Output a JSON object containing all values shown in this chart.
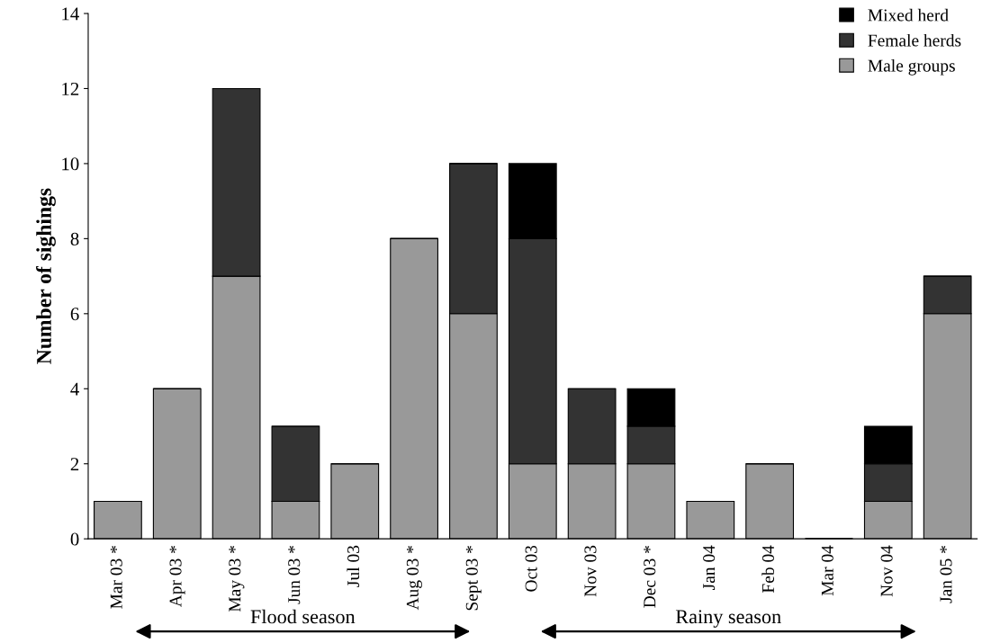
{
  "chart_data": {
    "type": "bar",
    "stacked": true,
    "ylabel": "Number of sighings",
    "categories": [
      "Mar 03 *",
      "Apr 03 *",
      "May 03 *",
      "Jun 03 *",
      "Jul 03",
      "Aug 03 *",
      "Sept 03 *",
      "Oct 03",
      "Nov 03",
      "Dec 03 *",
      "Jan 04",
      "Feb 04",
      "Mar 04",
      "Nov 04",
      "Jan 05 *"
    ],
    "series": [
      {
        "name": "Male groups",
        "color": "#999999",
        "values": [
          1,
          4,
          7,
          1,
          2,
          8,
          6,
          2,
          2,
          2,
          1,
          2,
          0,
          1,
          6
        ]
      },
      {
        "name": "Female herds",
        "color": "#333333",
        "values": [
          0,
          0,
          5,
          2,
          0,
          0,
          4,
          6,
          2,
          1,
          0,
          0,
          0,
          1,
          1
        ]
      },
      {
        "name": "Mixed herd",
        "color": "#000000",
        "values": [
          0,
          0,
          0,
          0,
          0,
          0,
          0,
          2,
          0,
          1,
          0,
          0,
          0,
          1,
          0
        ]
      }
    ],
    "ylim": [
      0,
      14
    ],
    "yticks": [
      0,
      2,
      4,
      6,
      8,
      10,
      12,
      14
    ],
    "grid": false,
    "legend": "top right",
    "annotations": [
      "Flood season",
      "Rainy season"
    ]
  }
}
